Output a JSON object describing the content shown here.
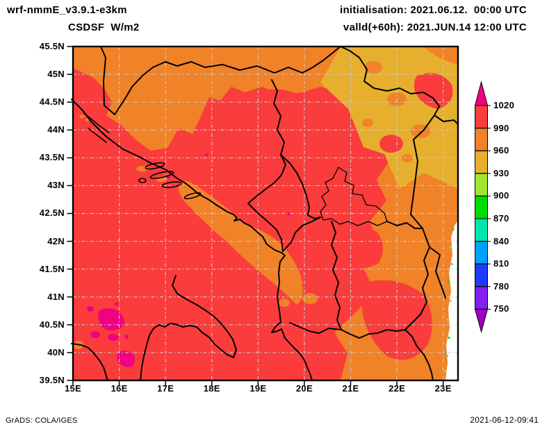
{
  "header": {
    "model": "wrf-nmmE_v3.9.1-e3km",
    "variable": "CSDSF  W/m2",
    "initialisation": "initialisation: 2021.06.12.  00:00 UTC",
    "valid": "valld(+60h): 2021.JUN.14 12:00 UTC"
  },
  "footer": {
    "credit": "GrADS: COLA/IGES",
    "timestamp": "2021-06-12-09:41"
  },
  "map": {
    "lat_labels": [
      "45.5N",
      "45N",
      "44.5N",
      "44N",
      "43.5N",
      "43N",
      "42.5N",
      "42N",
      "41.5N",
      "41N",
      "40.5N",
      "40N",
      "39.5N"
    ],
    "lon_labels": [
      "15E",
      "16E",
      "17E",
      "18E",
      "19E",
      "20E",
      "21E",
      "22E",
      "23E"
    ]
  },
  "colorbar": {
    "tick_labels": [
      "1020",
      "990",
      "960",
      "930",
      "900",
      "870",
      "840",
      "810",
      "780",
      "750"
    ],
    "segment_colors_top_to_bottom": [
      "#FA3C3C",
      "#F08228",
      "#E6AF2D",
      "#A0E632",
      "#00DC00",
      "#00E6AF",
      "#00A0FF",
      "#1E3CFF",
      "#8220F0"
    ],
    "above_max_color": "#F00082",
    "below_min_color": "#A000C8"
  },
  "palette": {
    "red": "#FA3C3C",
    "orange": "#F08228",
    "gold": "#E6AF2D",
    "magenta": "#F00082",
    "grid": "#C9C9C9",
    "nodata": "#FFFFFF"
  },
  "chart_data": {
    "type": "heatmap",
    "title": "CSDSF W/m2",
    "model": "wrf-nmmE_v3.9.1-e3km",
    "init_time": "2021.06.12. 00:00 UTC",
    "valid_time": "2021.JUN.14 12:00 UTC (+60h)",
    "lon_range_deg_east": [
      15,
      23.3
    ],
    "lat_range_deg_north": [
      39.5,
      45.5
    ],
    "scale_levels_w_m2": [
      750,
      780,
      810,
      840,
      870,
      900,
      930,
      960,
      990,
      1020
    ],
    "scale_colors_low_to_high": [
      "#A000C8",
      "#8220F0",
      "#1E3CFF",
      "#00A0FF",
      "#00E6AF",
      "#00DC00",
      "#A0E632",
      "#E6AF2D",
      "#F08228",
      "#FA3C3C",
      "#F00082"
    ],
    "field_summary": "990-1020 W/m2 (red) dominates the southwest and centre; 960-990 (orange) covers the northeast, the coastal band and southern patches; 930-960 (dark yellow) in the far northeast; small >1020 (magenta) patches over southern Italy; white no-data strip along the eastern map edge."
  }
}
